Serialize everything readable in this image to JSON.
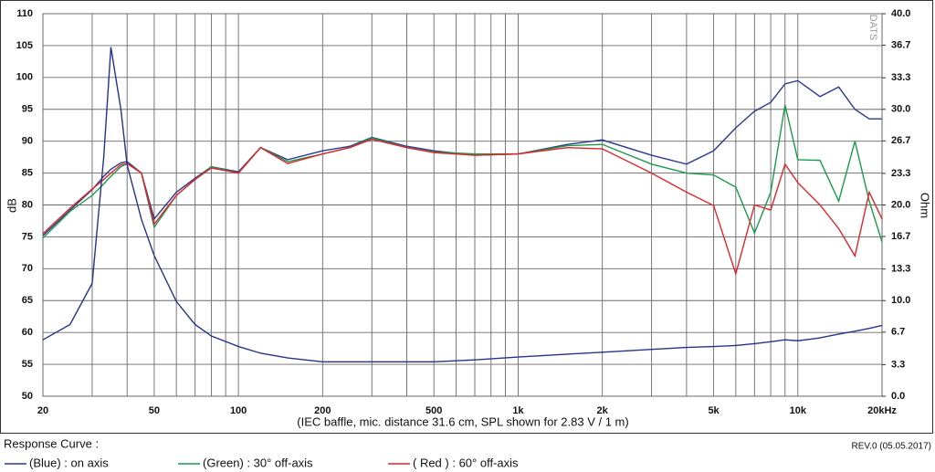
{
  "chart_data": {
    "type": "line",
    "title": "Response Curve :",
    "revision": "REV.0 (05.05.2017)",
    "watermark": "DATS",
    "xlabel": "(IEC baffle, mic. distance 31.6 cm, SPL shown for 2.83 V / 1 m)",
    "ylabel": "dB",
    "y2label": "Ohm",
    "xscale": "log",
    "grid": true,
    "xlim": [
      20,
      20000
    ],
    "xticks": [
      20,
      50,
      100,
      200,
      500,
      {
        "value": 1000,
        "label": "1k"
      },
      {
        "value": 2000,
        "label": "2k"
      },
      {
        "value": 5000,
        "label": "5k"
      },
      {
        "value": 10000,
        "label": "10k"
      },
      {
        "value": 20000,
        "label": "20kHz"
      }
    ],
    "xgrid_minor": [
      30,
      40,
      60,
      70,
      80,
      90,
      300,
      400,
      600,
      700,
      800,
      900,
      3000,
      4000,
      6000,
      7000,
      8000,
      9000
    ],
    "ylim": [
      50,
      110
    ],
    "yticks": [
      50,
      55,
      60,
      65,
      70,
      75,
      80,
      85,
      90,
      95,
      100,
      105,
      110
    ],
    "y2lim": [
      0,
      40
    ],
    "y2ticks": [
      {
        "value": 0,
        "label": "0.0"
      },
      3.3,
      6.7,
      {
        "value": 10,
        "label": "10.0"
      },
      13.3,
      16.7,
      {
        "value": 20,
        "label": "20.0"
      },
      23.3,
      26.7,
      {
        "value": 30,
        "label": "30.0"
      },
      33.3,
      36.7,
      {
        "value": 40,
        "label": "40.0"
      }
    ],
    "x": [
      20,
      25,
      30,
      33,
      35,
      38,
      40,
      45,
      50,
      60,
      70,
      80,
      100,
      120,
      150,
      200,
      250,
      300,
      400,
      500,
      700,
      1000,
      1500,
      2000,
      3000,
      4000,
      5000,
      6000,
      7000,
      8000,
      9000,
      10000,
      12000,
      14000,
      16000,
      18000,
      20000
    ],
    "series": [
      {
        "name": "(Blue) : on axis",
        "color": "#2b3990",
        "values": [
          75.2,
          79.2,
          82.4,
          84.5,
          85.6,
          86.6,
          86.8,
          85,
          77.8,
          82,
          84.2,
          86,
          85.2,
          89,
          87.1,
          88.5,
          89.2,
          90.6,
          89.2,
          88.5,
          87.8,
          88,
          89.5,
          90.2,
          87.8,
          86.4,
          88.5,
          92.1,
          94.7,
          96.1,
          99,
          99.5,
          97,
          98.5,
          95,
          93.5,
          93.5
        ]
      },
      {
        "name": "(Green) : 30° off-axis",
        "color": "#1a9b4a",
        "values": [
          74.8,
          79,
          81.5,
          83.3,
          84.5,
          86,
          86.5,
          85,
          76.5,
          81.5,
          84,
          86,
          85,
          89,
          86.8,
          88,
          89,
          90.5,
          89,
          88.3,
          88,
          88,
          89.3,
          89.5,
          86.4,
          85,
          84.7,
          82.8,
          75.6,
          82,
          95.7,
          87.1,
          87,
          80.6,
          90,
          80.6,
          74.2
        ]
      },
      {
        "name": "( Red ) : 60° off-axis",
        "color": "#e0262b",
        "values": [
          75.5,
          79.5,
          82.5,
          84,
          85,
          86.3,
          86.5,
          85,
          77,
          81.5,
          84,
          85.8,
          85,
          89,
          86.5,
          88,
          89,
          90.3,
          89,
          88.2,
          87.8,
          88,
          89,
          88.8,
          85,
          82,
          79.9,
          69.2,
          80,
          79.2,
          86.4,
          83.5,
          80,
          76.3,
          72,
          82,
          77.8
        ]
      },
      {
        "color": "#25338a",
        "axis": "y2",
        "values": [
          5.9,
          7.5,
          11.8,
          25,
          36.5,
          30,
          24.2,
          18.5,
          14.7,
          9.9,
          7.5,
          6.3,
          5.2,
          4.5,
          4.0,
          3.6,
          3.6,
          3.6,
          3.6,
          3.6,
          3.8,
          4.1,
          4.4,
          4.6,
          4.9,
          5.1,
          5.2,
          5.3,
          5.5,
          5.7,
          5.9,
          5.8,
          6.1,
          6.5,
          6.8,
          7.1,
          7.4
        ]
      }
    ]
  }
}
